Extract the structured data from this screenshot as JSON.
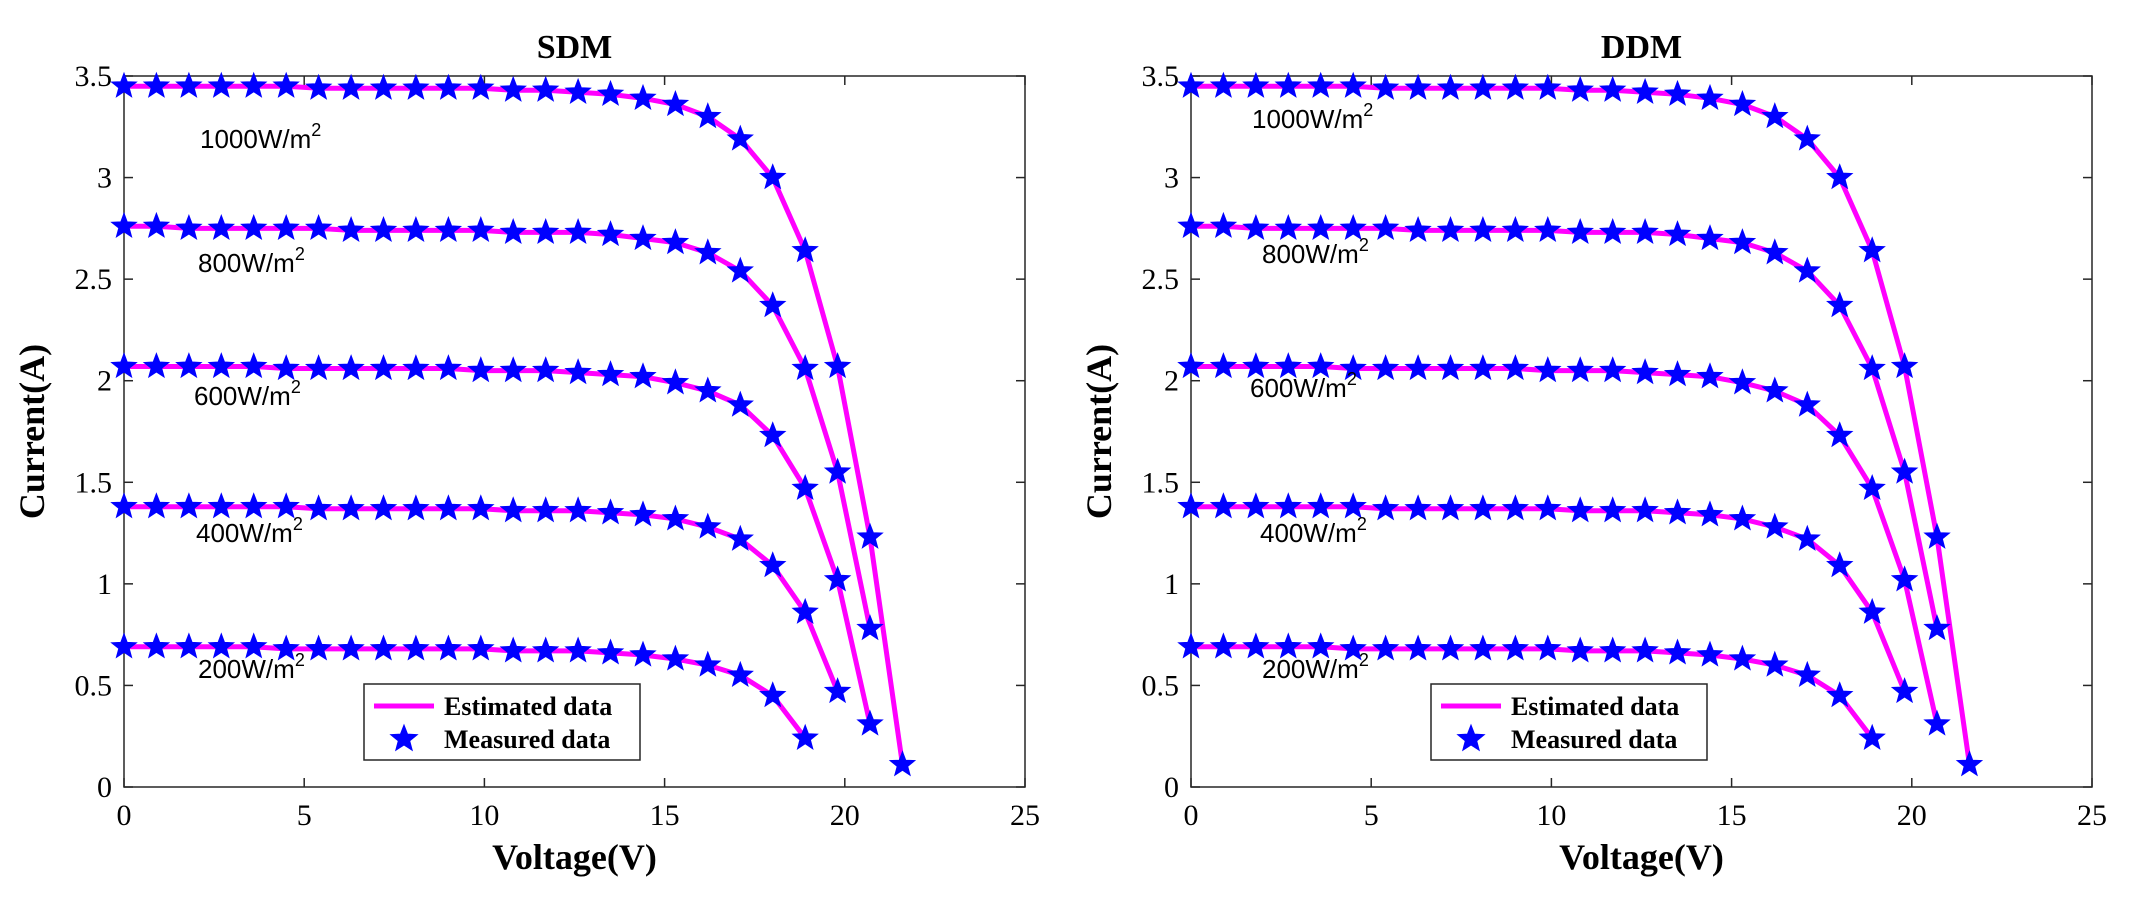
{
  "chart_data": [
    {
      "type": "line",
      "title": "SDM",
      "xlabel": "Voltage(V)",
      "ylabel": "Current(A)",
      "xlim": [
        0,
        25
      ],
      "ylim": [
        0,
        3.5
      ],
      "xticks": [
        "0",
        "5",
        "10",
        "15",
        "20",
        "25"
      ],
      "yticks": [
        "0",
        "0.5",
        "1",
        "1.5",
        "2",
        "2.5",
        "3",
        "3.5"
      ],
      "colors": {
        "estimated": "#ff00ff",
        "measured": "#0000ff"
      },
      "legend": {
        "position": "bottom-center",
        "entries": [
          "Estimated data",
          "Measured data"
        ]
      },
      "series": [
        {
          "name": "1000W/m2",
          "label": "1000W/m",
          "sup": "2",
          "x": [
            0,
            0.9,
            1.8,
            2.7,
            3.6,
            4.5,
            5.4,
            6.3,
            7.2,
            8.1,
            9.0,
            9.9,
            10.8,
            11.7,
            12.6,
            13.5,
            14.4,
            15.3,
            16.2,
            17.1,
            18.0,
            18.9,
            19.8,
            20.7,
            21.6
          ],
          "y": [
            3.45,
            3.45,
            3.45,
            3.45,
            3.45,
            3.45,
            3.44,
            3.44,
            3.44,
            3.44,
            3.44,
            3.44,
            3.43,
            3.43,
            3.42,
            3.41,
            3.39,
            3.36,
            3.3,
            3.19,
            3.0,
            2.64,
            2.07,
            1.23,
            0.11
          ]
        },
        {
          "name": "800W/m2",
          "label": "800W/m",
          "sup": "2",
          "x": [
            0,
            0.9,
            1.8,
            2.7,
            3.6,
            4.5,
            5.4,
            6.3,
            7.2,
            8.1,
            9.0,
            9.9,
            10.8,
            11.7,
            12.6,
            13.5,
            14.4,
            15.3,
            16.2,
            17.1,
            18.0,
            18.9,
            19.8,
            20.7
          ],
          "y": [
            2.76,
            2.76,
            2.75,
            2.75,
            2.75,
            2.75,
            2.75,
            2.74,
            2.74,
            2.74,
            2.74,
            2.74,
            2.73,
            2.73,
            2.73,
            2.72,
            2.7,
            2.68,
            2.63,
            2.54,
            2.37,
            2.06,
            1.55,
            0.78
          ]
        },
        {
          "name": "600W/m2",
          "label": "600W/m",
          "sup": "2",
          "x": [
            0,
            0.9,
            1.8,
            2.7,
            3.6,
            4.5,
            5.4,
            6.3,
            7.2,
            8.1,
            9.0,
            9.9,
            10.8,
            11.7,
            12.6,
            13.5,
            14.4,
            15.3,
            16.2,
            17.1,
            18.0,
            18.9,
            19.8,
            20.7
          ],
          "y": [
            2.07,
            2.07,
            2.07,
            2.07,
            2.07,
            2.06,
            2.06,
            2.06,
            2.06,
            2.06,
            2.06,
            2.05,
            2.05,
            2.05,
            2.04,
            2.03,
            2.02,
            1.99,
            1.95,
            1.88,
            1.73,
            1.47,
            1.02,
            0.31
          ]
        },
        {
          "name": "400W/m2",
          "label": "400W/m",
          "sup": "2",
          "x": [
            0,
            0.9,
            1.8,
            2.7,
            3.6,
            4.5,
            5.4,
            6.3,
            7.2,
            8.1,
            9.0,
            9.9,
            10.8,
            11.7,
            12.6,
            13.5,
            14.4,
            15.3,
            16.2,
            17.1,
            18.0,
            18.9,
            19.8
          ],
          "y": [
            1.38,
            1.38,
            1.38,
            1.38,
            1.38,
            1.38,
            1.37,
            1.37,
            1.37,
            1.37,
            1.37,
            1.37,
            1.36,
            1.36,
            1.36,
            1.35,
            1.34,
            1.32,
            1.28,
            1.22,
            1.09,
            0.86,
            0.47
          ]
        },
        {
          "name": "200W/m2",
          "label": "200W/m",
          "sup": "2",
          "x": [
            0,
            0.9,
            1.8,
            2.7,
            3.6,
            4.5,
            5.4,
            6.3,
            7.2,
            8.1,
            9.0,
            9.9,
            10.8,
            11.7,
            12.6,
            13.5,
            14.4,
            15.3,
            16.2,
            17.1,
            18.0,
            18.9
          ],
          "y": [
            0.69,
            0.69,
            0.69,
            0.69,
            0.69,
            0.68,
            0.68,
            0.68,
            0.68,
            0.68,
            0.68,
            0.68,
            0.67,
            0.67,
            0.67,
            0.66,
            0.65,
            0.63,
            0.6,
            0.55,
            0.45,
            0.24
          ]
        }
      ]
    },
    {
      "type": "line",
      "title": "DDM",
      "xlabel": "Voltage(V)",
      "ylabel": "Current(A)",
      "xlim": [
        0,
        25
      ],
      "ylim": [
        0,
        3.5
      ],
      "xticks": [
        "0",
        "5",
        "10",
        "15",
        "20",
        "25"
      ],
      "yticks": [
        "0",
        "0.5",
        "1",
        "1.5",
        "2",
        "2.5",
        "3",
        "3.5"
      ],
      "colors": {
        "estimated": "#ff00ff",
        "measured": "#0000ff"
      },
      "legend": {
        "position": "bottom-center",
        "entries": [
          "Estimated data",
          "Measured data"
        ]
      },
      "series": [
        {
          "name": "1000W/m2",
          "label": "1000W/m",
          "sup": "2",
          "x": [
            0,
            0.9,
            1.8,
            2.7,
            3.6,
            4.5,
            5.4,
            6.3,
            7.2,
            8.1,
            9.0,
            9.9,
            10.8,
            11.7,
            12.6,
            13.5,
            14.4,
            15.3,
            16.2,
            17.1,
            18.0,
            18.9,
            19.8,
            20.7,
            21.6
          ],
          "y": [
            3.45,
            3.45,
            3.45,
            3.45,
            3.45,
            3.45,
            3.44,
            3.44,
            3.44,
            3.44,
            3.44,
            3.44,
            3.43,
            3.43,
            3.42,
            3.41,
            3.39,
            3.36,
            3.3,
            3.19,
            3.0,
            2.64,
            2.07,
            1.23,
            0.11
          ]
        },
        {
          "name": "800W/m2",
          "label": "800W/m",
          "sup": "2",
          "x": [
            0,
            0.9,
            1.8,
            2.7,
            3.6,
            4.5,
            5.4,
            6.3,
            7.2,
            8.1,
            9.0,
            9.9,
            10.8,
            11.7,
            12.6,
            13.5,
            14.4,
            15.3,
            16.2,
            17.1,
            18.0,
            18.9,
            19.8,
            20.7
          ],
          "y": [
            2.76,
            2.76,
            2.75,
            2.75,
            2.75,
            2.75,
            2.75,
            2.74,
            2.74,
            2.74,
            2.74,
            2.74,
            2.73,
            2.73,
            2.73,
            2.72,
            2.7,
            2.68,
            2.63,
            2.54,
            2.37,
            2.06,
            1.55,
            0.78
          ]
        },
        {
          "name": "600W/m2",
          "label": "600W/m",
          "sup": "2",
          "x": [
            0,
            0.9,
            1.8,
            2.7,
            3.6,
            4.5,
            5.4,
            6.3,
            7.2,
            8.1,
            9.0,
            9.9,
            10.8,
            11.7,
            12.6,
            13.5,
            14.4,
            15.3,
            16.2,
            17.1,
            18.0,
            18.9,
            19.8,
            20.7
          ],
          "y": [
            2.07,
            2.07,
            2.07,
            2.07,
            2.07,
            2.06,
            2.06,
            2.06,
            2.06,
            2.06,
            2.06,
            2.05,
            2.05,
            2.05,
            2.04,
            2.03,
            2.02,
            1.99,
            1.95,
            1.88,
            1.73,
            1.47,
            1.02,
            0.31
          ]
        },
        {
          "name": "400W/m2",
          "label": "400W/m",
          "sup": "2",
          "x": [
            0,
            0.9,
            1.8,
            2.7,
            3.6,
            4.5,
            5.4,
            6.3,
            7.2,
            8.1,
            9.0,
            9.9,
            10.8,
            11.7,
            12.6,
            13.5,
            14.4,
            15.3,
            16.2,
            17.1,
            18.0,
            18.9,
            19.8
          ],
          "y": [
            1.38,
            1.38,
            1.38,
            1.38,
            1.38,
            1.38,
            1.37,
            1.37,
            1.37,
            1.37,
            1.37,
            1.37,
            1.36,
            1.36,
            1.36,
            1.35,
            1.34,
            1.32,
            1.28,
            1.22,
            1.09,
            0.86,
            0.47
          ]
        },
        {
          "name": "200W/m2",
          "label": "200W/m",
          "sup": "2",
          "x": [
            0,
            0.9,
            1.8,
            2.7,
            3.6,
            4.5,
            5.4,
            6.3,
            7.2,
            8.1,
            9.0,
            9.9,
            10.8,
            11.7,
            12.6,
            13.5,
            14.4,
            15.3,
            16.2,
            17.1,
            18.0,
            18.9
          ],
          "y": [
            0.69,
            0.69,
            0.69,
            0.69,
            0.69,
            0.68,
            0.68,
            0.68,
            0.68,
            0.68,
            0.68,
            0.68,
            0.67,
            0.67,
            0.67,
            0.66,
            0.65,
            0.63,
            0.6,
            0.55,
            0.45,
            0.24
          ]
        }
      ]
    }
  ]
}
